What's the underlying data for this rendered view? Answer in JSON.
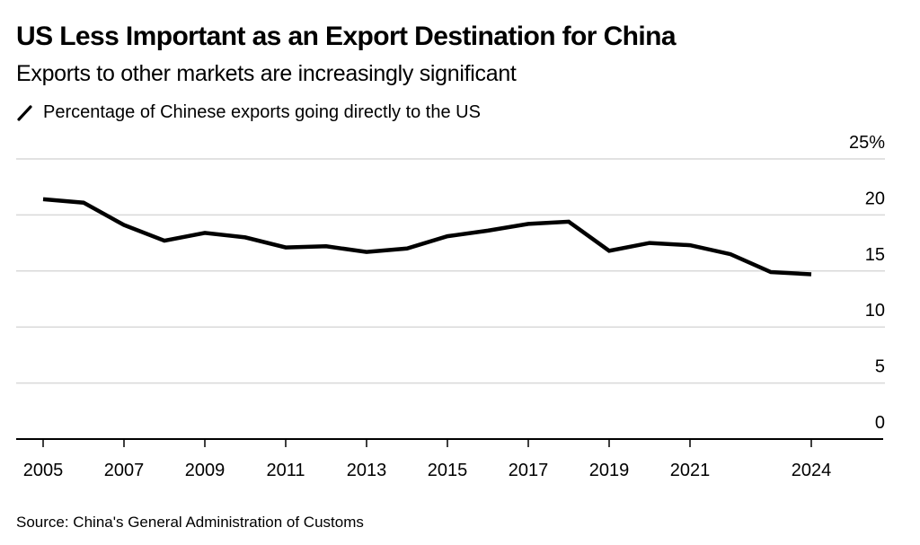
{
  "header": {
    "title": "US Less Important as an Export Destination for China",
    "subtitle": "Exports to other markets are increasingly significant"
  },
  "legend": {
    "icon": "line-swatch-icon",
    "label": "Percentage of Chinese exports going directly to the US",
    "color": "#000000"
  },
  "source": "Source: China's General Administration of Customs",
  "chart_data": {
    "type": "line",
    "title": "US Less Important as an Export Destination for China",
    "subtitle": "Exports to other markets are increasingly significant",
    "xlabel": "",
    "ylabel": "",
    "x": [
      2005,
      2006,
      2007,
      2008,
      2009,
      2010,
      2011,
      2012,
      2013,
      2014,
      2015,
      2016,
      2017,
      2018,
      2019,
      2020,
      2021,
      2022,
      2023,
      2024
    ],
    "series": [
      {
        "name": "Percentage of Chinese exports going directly to the US",
        "color": "#000000",
        "values": [
          21.4,
          21.1,
          19.1,
          17.7,
          18.4,
          18.0,
          17.1,
          17.2,
          16.7,
          17.0,
          18.1,
          18.6,
          19.2,
          19.4,
          16.8,
          17.5,
          17.3,
          16.5,
          14.9,
          14.7
        ]
      }
    ],
    "xlim": [
      2001.7,
      2025.8
    ],
    "ylim": [
      0,
      25
    ],
    "x_ticks": [
      2005,
      2007,
      2009,
      2011,
      2013,
      2015,
      2017,
      2019,
      2021,
      2024
    ],
    "x_tick_labels": [
      "2005",
      "2007",
      "2009",
      "2011",
      "2013",
      "2015",
      "2017",
      "2019",
      "2021",
      "2024"
    ],
    "y_ticks": [
      0,
      5,
      10,
      15,
      20,
      25
    ],
    "y_tick_labels": [
      "0",
      "5",
      "10",
      "15",
      "20",
      "25%"
    ],
    "y_axis_side": "right",
    "grid": true,
    "legend_position": "top-left",
    "gridline_color": "#d9d9d9",
    "axis_color": "#000000"
  }
}
